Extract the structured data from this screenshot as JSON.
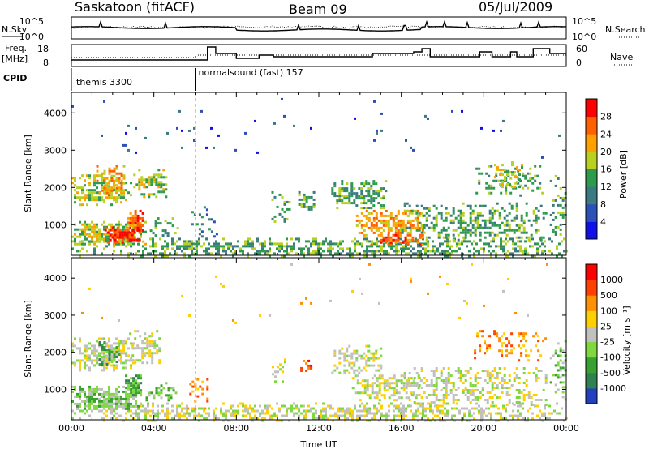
{
  "header": {
    "station": "Saskatoon (fitACF)",
    "beam": "Beam 09",
    "date": "05/Jul/2009"
  },
  "summary_panels": {
    "nsky_label": "N.Sky",
    "nsky_ticks": [
      "10^5",
      "10^0"
    ],
    "nsearch_label": "N.Search",
    "nsearch_ticks": [
      "10^5",
      "10^0"
    ],
    "freq_label_line1": "Freq.",
    "freq_label_line2": "[MHz]",
    "freq_ticks": [
      "18",
      "8"
    ],
    "nave_label": "Nave",
    "nave_ticks": [
      "60",
      "0"
    ],
    "cpid_label": "CPID",
    "cpid_segments": [
      {
        "label": "themis 3300",
        "start_hour": 0.0
      },
      {
        "label": "normalsound (fast) 157",
        "start_hour": 6.0
      }
    ]
  },
  "chart_data": [
    {
      "type": "heatmap",
      "name": "Power",
      "ylabel": "Slant Range [km]",
      "ylim": [
        180,
        4550
      ],
      "yticks": [
        1000,
        2000,
        3000,
        4000
      ],
      "xlim": [
        0,
        24
      ],
      "colorbar": {
        "label": "Power [dB]",
        "ticks": [
          "4",
          "8",
          "12",
          "16",
          "20",
          "24",
          "28"
        ],
        "colors": [
          "#1010e8",
          "#2b50b8",
          "#3a7a80",
          "#2e9a4c",
          "#b8d020",
          "#ffa000",
          "#ff6000",
          "#ff0000"
        ]
      },
      "regions": [
        {
          "t0": 0.0,
          "t1": 24.0,
          "r0": 180,
          "r1": 650,
          "level": 3,
          "density": 0.55
        },
        {
          "t0": 0.0,
          "t1": 3.6,
          "r0": 450,
          "r1": 1100,
          "level": 4,
          "density": 0.8
        },
        {
          "t0": 1.6,
          "t1": 3.3,
          "r0": 550,
          "r1": 950,
          "level": 7,
          "density": 0.9
        },
        {
          "t0": 2.7,
          "t1": 3.5,
          "r0": 850,
          "r1": 1400,
          "level": 6,
          "density": 0.85
        },
        {
          "t0": 0.0,
          "t1": 3.0,
          "r0": 1550,
          "r1": 2350,
          "level": 4,
          "density": 0.65
        },
        {
          "t0": 1.2,
          "t1": 2.6,
          "r0": 1850,
          "r1": 2600,
          "level": 5,
          "density": 0.5
        },
        {
          "t0": 3.0,
          "t1": 4.6,
          "r0": 1700,
          "r1": 2500,
          "level": 4,
          "density": 0.55
        },
        {
          "t0": 3.8,
          "t1": 5.2,
          "r0": 700,
          "r1": 1200,
          "level": 3,
          "density": 0.4
        },
        {
          "t0": 5.7,
          "t1": 7.0,
          "r0": 600,
          "r1": 1500,
          "level": 2,
          "density": 0.25
        },
        {
          "t0": 9.7,
          "t1": 10.6,
          "r0": 1100,
          "r1": 1900,
          "level": 3,
          "density": 0.3
        },
        {
          "t0": 11.0,
          "t1": 11.8,
          "r0": 1400,
          "r1": 1900,
          "level": 3,
          "density": 0.6
        },
        {
          "t0": 12.6,
          "t1": 15.2,
          "r0": 1450,
          "r1": 2200,
          "level": 3,
          "density": 0.55
        },
        {
          "t0": 13.8,
          "t1": 17.0,
          "r0": 700,
          "r1": 1400,
          "level": 5,
          "density": 0.65
        },
        {
          "t0": 14.5,
          "t1": 17.0,
          "r0": 450,
          "r1": 750,
          "level": 6,
          "density": 0.7
        },
        {
          "t0": 16.0,
          "t1": 23.0,
          "r0": 600,
          "r1": 1600,
          "level": 3,
          "density": 0.45
        },
        {
          "t0": 19.6,
          "t1": 23.0,
          "r0": 1800,
          "r1": 2600,
          "level": 3,
          "density": 0.3
        },
        {
          "t0": 20.5,
          "t1": 22.0,
          "r0": 2000,
          "r1": 2700,
          "level": 4,
          "density": 0.35
        },
        {
          "t0": 23.2,
          "t1": 24.0,
          "r0": 700,
          "r1": 2400,
          "level": 3,
          "density": 0.3
        },
        {
          "t0": 0.0,
          "t1": 24.0,
          "r0": 2600,
          "r1": 4400,
          "level": 1,
          "density": 0.015
        }
      ]
    },
    {
      "type": "heatmap",
      "name": "Velocity",
      "ylabel": "Slant Range [km]",
      "xlabel": "Time UT",
      "ylim": [
        180,
        4550
      ],
      "yticks": [
        1000,
        2000,
        3000,
        4000
      ],
      "xlim": [
        0,
        24
      ],
      "xticks": [
        "00:00",
        "04:00",
        "08:00",
        "12:00",
        "16:00",
        "20:00",
        "00:00"
      ],
      "colorbar": {
        "label": "Velocity [m s⁻¹]",
        "ticks": [
          "1000",
          "500",
          "100",
          "25",
          "-25",
          "-100",
          "-500",
          "-1000"
        ],
        "colors": [
          "#2040c0",
          "#308050",
          "#3aa030",
          "#80d840",
          "#c0c0c0",
          "#ffd000",
          "#ff9000",
          "#ff4000",
          "#ff0000"
        ]
      },
      "regions": [
        {
          "t0": 0.0,
          "t1": 24.0,
          "r0": 180,
          "r1": 650,
          "level": 4,
          "density": 0.55
        },
        {
          "t0": 0.0,
          "t1": 3.4,
          "r0": 450,
          "r1": 1100,
          "level": 3,
          "density": 0.8
        },
        {
          "t0": 2.6,
          "t1": 3.4,
          "r0": 850,
          "r1": 1400,
          "level": 2,
          "density": 0.85
        },
        {
          "t0": 0.0,
          "t1": 3.0,
          "r0": 1500,
          "r1": 2400,
          "level": 4,
          "density": 0.65
        },
        {
          "t0": 1.2,
          "t1": 2.4,
          "r0": 1700,
          "r1": 2300,
          "level": 2,
          "density": 0.55
        },
        {
          "t0": 2.8,
          "t1": 4.4,
          "r0": 1700,
          "r1": 2600,
          "level": 4,
          "density": 0.55
        },
        {
          "t0": 3.6,
          "t1": 5.2,
          "r0": 700,
          "r1": 1200,
          "level": 3,
          "density": 0.35
        },
        {
          "t0": 5.6,
          "t1": 6.6,
          "r0": 500,
          "r1": 1500,
          "level": 6,
          "density": 0.18
        },
        {
          "t0": 9.6,
          "t1": 10.4,
          "r0": 1100,
          "r1": 1900,
          "level": 4,
          "density": 0.3
        },
        {
          "t0": 11.1,
          "t1": 11.6,
          "r0": 1400,
          "r1": 1800,
          "level": 7,
          "density": 0.7
        },
        {
          "t0": 12.6,
          "t1": 15.0,
          "r0": 1450,
          "r1": 2200,
          "level": 4,
          "density": 0.5
        },
        {
          "t0": 13.6,
          "t1": 17.0,
          "r0": 700,
          "r1": 1400,
          "level": 4,
          "density": 0.6
        },
        {
          "t0": 16.0,
          "t1": 23.0,
          "r0": 600,
          "r1": 1600,
          "level": 4,
          "density": 0.45
        },
        {
          "t0": 19.4,
          "t1": 23.0,
          "r0": 1800,
          "r1": 2600,
          "level": 6,
          "density": 0.3
        },
        {
          "t0": 23.2,
          "t1": 24.0,
          "r0": 700,
          "r1": 2400,
          "level": 3,
          "density": 0.3
        },
        {
          "t0": 0.0,
          "t1": 24.0,
          "r0": 2600,
          "r1": 4400,
          "level": 5,
          "density": 0.012
        }
      ]
    }
  ],
  "colors": {
    "axis": "#000000",
    "background": "#ffffff",
    "cpid_divider": "#b0b0b0"
  }
}
